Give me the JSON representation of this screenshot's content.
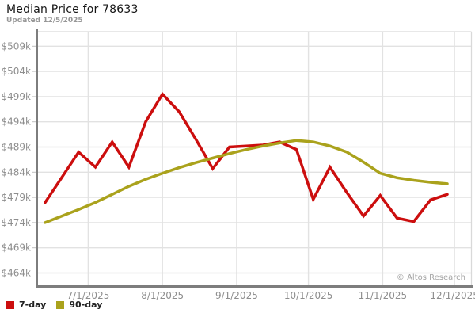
{
  "header": {
    "title": "Median Price for 78633",
    "subtitle": "Updated 12/5/2025"
  },
  "watermark": "© Altos Research",
  "chart_data": {
    "type": "line",
    "title": "Median Price for 78633",
    "updated": "12/5/2025",
    "x": [
      "6/13/2025",
      "6/20/2025",
      "6/27/2025",
      "7/4/2025",
      "7/11/2025",
      "7/18/2025",
      "7/25/2025",
      "8/1/2025",
      "8/8/2025",
      "8/15/2025",
      "8/22/2025",
      "8/29/2025",
      "9/5/2025",
      "9/12/2025",
      "9/19/2025",
      "9/26/2025",
      "10/3/2025",
      "10/10/2025",
      "10/17/2025",
      "10/24/2025",
      "10/31/2025",
      "11/7/2025",
      "11/14/2025",
      "11/21/2025",
      "11/28/2025"
    ],
    "series": [
      {
        "name": "7-day",
        "color": "#cc0e0e",
        "unit": "USD thousands",
        "values_k": [
          478,
          483,
          488,
          485,
          490,
          485,
          494,
          499.5,
          496,
          490.5,
          484.7,
          489,
          489.2,
          489.4,
          490,
          488.5,
          478.6,
          485,
          480,
          475.3,
          479.4,
          474.9,
          474.2,
          478.5,
          479.6
        ]
      },
      {
        "name": "90-day",
        "color": "#aaa21c",
        "unit": "USD thousands",
        "values_k": [
          474,
          475.3,
          476.6,
          478,
          479.6,
          481.2,
          482.6,
          483.8,
          484.9,
          485.9,
          486.8,
          487.7,
          488.5,
          489.2,
          489.8,
          490.3,
          490,
          489.2,
          488,
          486,
          483.8,
          482.9,
          482.4,
          482,
          481.7
        ]
      }
    ],
    "ylim": [
      464,
      509
    ],
    "yticks": [
      {
        "value": 509,
        "label": "$509k"
      },
      {
        "value": 504,
        "label": "$504k"
      },
      {
        "value": 499,
        "label": "$499k"
      },
      {
        "value": 494,
        "label": "$494k"
      },
      {
        "value": 489,
        "label": "$489k"
      },
      {
        "value": 484,
        "label": "$484k"
      },
      {
        "value": 479,
        "label": "$479k"
      },
      {
        "value": 474,
        "label": "$474k"
      },
      {
        "value": 469,
        "label": "$469k"
      },
      {
        "value": 464,
        "label": "$464k"
      }
    ],
    "xticks": [
      "7/1/2025",
      "8/1/2025",
      "9/1/2025",
      "10/1/2025",
      "11/1/2025",
      "12/1/2025"
    ],
    "grid": true,
    "legend_position": "bottom-left",
    "colors": {
      "grid": "#e2e2e2",
      "axis_border": "#7d7d7d",
      "frame_border": "#d9d9d9",
      "tick": "#bfbfbf",
      "label": "#8e8e8e"
    }
  }
}
